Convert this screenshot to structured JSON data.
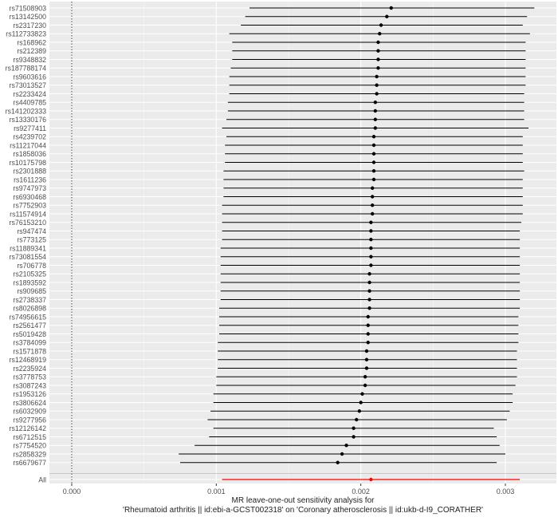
{
  "chart_data": {
    "type": "forest",
    "title": "",
    "xlabel_line1": "MR leave-one-out sensitivity analysis for",
    "xlabel_line2": "'Rheumatoid arthritis || id:ebi-a-GCST002318' on 'Coronary atherosclerosis || id:ukb-d-I9_CORATHER'",
    "ylabel": "",
    "xlim": [
      -0.00025,
      0.00335
    ],
    "x_ticks": [
      0.0,
      0.001,
      0.002,
      0.003
    ],
    "x_tick_labels": [
      "0.000",
      "0.001",
      "0.002",
      "0.003"
    ],
    "reference_line_x": 0.0,
    "grid": true,
    "point_color": "#000000",
    "summary_color": "#ff0000",
    "snps": [
      {
        "name": "rs71508903",
        "estimate": 0.00221,
        "lower": 0.00123,
        "upper": 0.0032
      },
      {
        "name": "rs13142500",
        "estimate": 0.00218,
        "lower": 0.0012,
        "upper": 0.00315
      },
      {
        "name": "rs2317230",
        "estimate": 0.00214,
        "lower": 0.00117,
        "upper": 0.00312
      },
      {
        "name": "rs112733823",
        "estimate": 0.00213,
        "lower": 0.00109,
        "upper": 0.00317
      },
      {
        "name": "rs168962",
        "estimate": 0.00212,
        "lower": 0.00111,
        "upper": 0.00314
      },
      {
        "name": "rs212389",
        "estimate": 0.00212,
        "lower": 0.00111,
        "upper": 0.00314
      },
      {
        "name": "rs9348832",
        "estimate": 0.00212,
        "lower": 0.00111,
        "upper": 0.00314
      },
      {
        "name": "rs187788174",
        "estimate": 0.00212,
        "lower": 0.0011,
        "upper": 0.00314
      },
      {
        "name": "rs9603616",
        "estimate": 0.00211,
        "lower": 0.00109,
        "upper": 0.00314
      },
      {
        "name": "rs73013527",
        "estimate": 0.00211,
        "lower": 0.00109,
        "upper": 0.00314
      },
      {
        "name": "rs2233424",
        "estimate": 0.00211,
        "lower": 0.00109,
        "upper": 0.00313
      },
      {
        "name": "rs4409785",
        "estimate": 0.0021,
        "lower": 0.00108,
        "upper": 0.00313
      },
      {
        "name": "rs141202333",
        "estimate": 0.0021,
        "lower": 0.00108,
        "upper": 0.00313
      },
      {
        "name": "rs13330176",
        "estimate": 0.0021,
        "lower": 0.00107,
        "upper": 0.00313
      },
      {
        "name": "rs9277411",
        "estimate": 0.0021,
        "lower": 0.00104,
        "upper": 0.00316
      },
      {
        "name": "rs4239702",
        "estimate": 0.00209,
        "lower": 0.00107,
        "upper": 0.00312
      },
      {
        "name": "rs11217044",
        "estimate": 0.00209,
        "lower": 0.00106,
        "upper": 0.00312
      },
      {
        "name": "rs1858036",
        "estimate": 0.00209,
        "lower": 0.00106,
        "upper": 0.00312
      },
      {
        "name": "rs10175798",
        "estimate": 0.00209,
        "lower": 0.00106,
        "upper": 0.00312
      },
      {
        "name": "rs2301888",
        "estimate": 0.00209,
        "lower": 0.00105,
        "upper": 0.00313
      },
      {
        "name": "rs1611236",
        "estimate": 0.00209,
        "lower": 0.00105,
        "upper": 0.00312
      },
      {
        "name": "rs9747973",
        "estimate": 0.00208,
        "lower": 0.00105,
        "upper": 0.00312
      },
      {
        "name": "rs6930468",
        "estimate": 0.00208,
        "lower": 0.00105,
        "upper": 0.00312
      },
      {
        "name": "rs7752903",
        "estimate": 0.00208,
        "lower": 0.00104,
        "upper": 0.00312
      },
      {
        "name": "rs11574914",
        "estimate": 0.00208,
        "lower": 0.00104,
        "upper": 0.00312
      },
      {
        "name": "rs76153210",
        "estimate": 0.00207,
        "lower": 0.00104,
        "upper": 0.00311
      },
      {
        "name": "rs947474",
        "estimate": 0.00207,
        "lower": 0.00104,
        "upper": 0.0031
      },
      {
        "name": "rs773125",
        "estimate": 0.00207,
        "lower": 0.00104,
        "upper": 0.0031
      },
      {
        "name": "rs11889341",
        "estimate": 0.00207,
        "lower": 0.00103,
        "upper": 0.0031
      },
      {
        "name": "rs73081554",
        "estimate": 0.00207,
        "lower": 0.00103,
        "upper": 0.0031
      },
      {
        "name": "rs706778",
        "estimate": 0.00207,
        "lower": 0.00103,
        "upper": 0.0031
      },
      {
        "name": "rs2105325",
        "estimate": 0.00206,
        "lower": 0.00103,
        "upper": 0.0031
      },
      {
        "name": "rs1893592",
        "estimate": 0.00206,
        "lower": 0.00103,
        "upper": 0.0031
      },
      {
        "name": "rs909685",
        "estimate": 0.00206,
        "lower": 0.00103,
        "upper": 0.0031
      },
      {
        "name": "rs2738337",
        "estimate": 0.00206,
        "lower": 0.00103,
        "upper": 0.0031
      },
      {
        "name": "rs8026898",
        "estimate": 0.00206,
        "lower": 0.00102,
        "upper": 0.0031
      },
      {
        "name": "rs74956615",
        "estimate": 0.00205,
        "lower": 0.00102,
        "upper": 0.00309
      },
      {
        "name": "rs2561477",
        "estimate": 0.00205,
        "lower": 0.00102,
        "upper": 0.00309
      },
      {
        "name": "rs5019428",
        "estimate": 0.00205,
        "lower": 0.00102,
        "upper": 0.00309
      },
      {
        "name": "rs3784099",
        "estimate": 0.00205,
        "lower": 0.00101,
        "upper": 0.00309
      },
      {
        "name": "rs1571878",
        "estimate": 0.00204,
        "lower": 0.00101,
        "upper": 0.00308
      },
      {
        "name": "rs12468919",
        "estimate": 0.00204,
        "lower": 0.00101,
        "upper": 0.00308
      },
      {
        "name": "rs2235924",
        "estimate": 0.00204,
        "lower": 0.00101,
        "upper": 0.00308
      },
      {
        "name": "rs3778753",
        "estimate": 0.00203,
        "lower": 0.001,
        "upper": 0.00308
      },
      {
        "name": "rs3087243",
        "estimate": 0.00203,
        "lower": 0.001,
        "upper": 0.00307
      },
      {
        "name": "rs1953126",
        "estimate": 0.00201,
        "lower": 0.00098,
        "upper": 0.00305
      },
      {
        "name": "rs3806624",
        "estimate": 0.002,
        "lower": 0.00098,
        "upper": 0.00305
      },
      {
        "name": "rs6032909",
        "estimate": 0.00199,
        "lower": 0.00096,
        "upper": 0.00303
      },
      {
        "name": "rs9277956",
        "estimate": 0.00197,
        "lower": 0.00094,
        "upper": 0.00301
      },
      {
        "name": "rs12126142",
        "estimate": 0.00195,
        "lower": 0.00098,
        "upper": 0.00292
      },
      {
        "name": "rs6712515",
        "estimate": 0.00195,
        "lower": 0.00095,
        "upper": 0.00294
      },
      {
        "name": "rs7754520",
        "estimate": 0.0019,
        "lower": 0.00085,
        "upper": 0.00296
      },
      {
        "name": "rs2858329",
        "estimate": 0.00187,
        "lower": 0.00074,
        "upper": 0.003
      },
      {
        "name": "rs6679677",
        "estimate": 0.00184,
        "lower": 0.00075,
        "upper": 0.00294
      }
    ],
    "summary": {
      "name": "All",
      "estimate": 0.00207,
      "lower": 0.00104,
      "upper": 0.0031
    }
  }
}
